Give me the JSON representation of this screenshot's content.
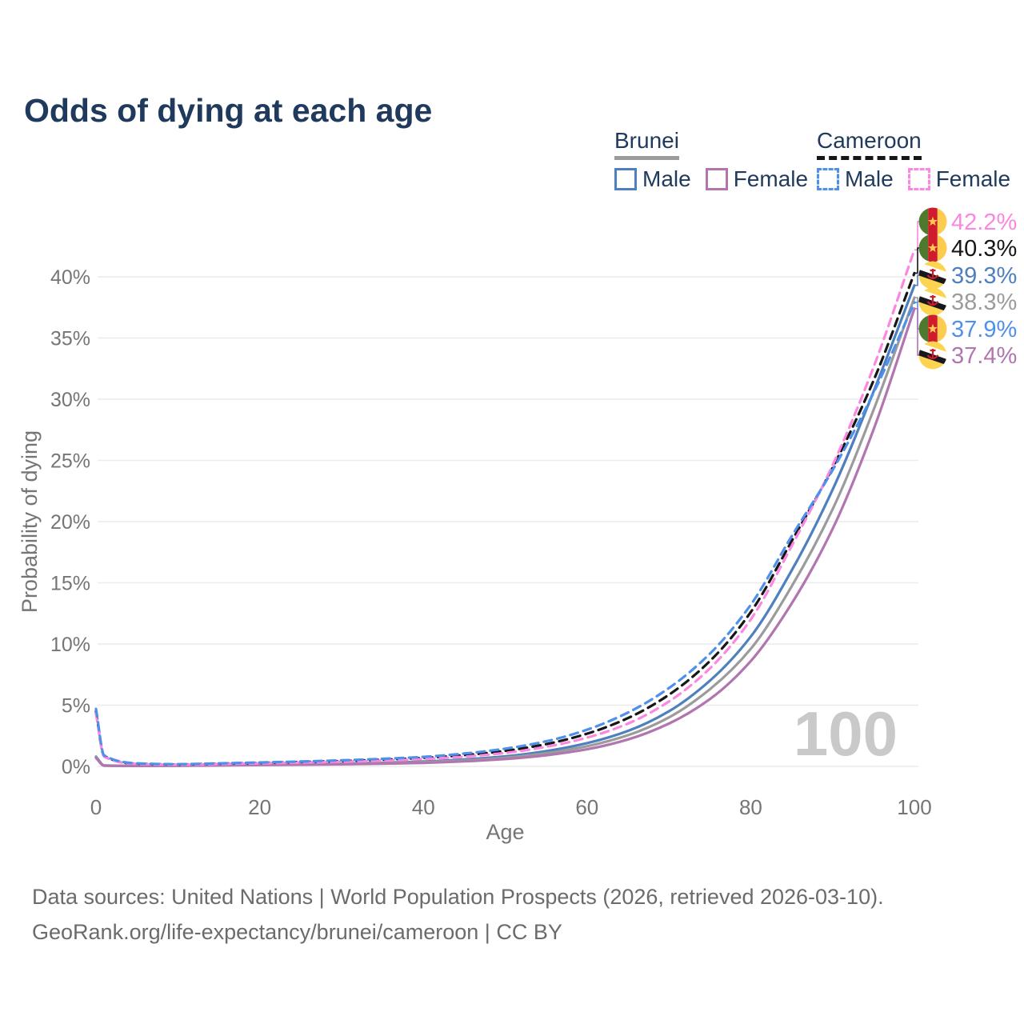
{
  "title": "Odds of dying at each age",
  "legend": {
    "groups": [
      {
        "label": "Brunei",
        "line_style": "solid",
        "line_color": "#9b9b9b",
        "items": [
          {
            "label": "Male",
            "color": "#4e7fbe",
            "dashed": false
          },
          {
            "label": "Female",
            "color": "#b175af",
            "dashed": false
          }
        ]
      },
      {
        "label": "Cameroon",
        "line_style": "dashed",
        "line_color": "#161616",
        "items": [
          {
            "label": "Male",
            "color": "#4f90ea",
            "dashed": true
          },
          {
            "label": "Female",
            "color": "#fb87e0",
            "dashed": true
          }
        ]
      }
    ]
  },
  "chart_data": {
    "type": "line",
    "title": "Odds of dying at each age",
    "xlabel": "Age",
    "ylabel": "Probability of dying",
    "xlim": [
      0,
      100
    ],
    "ylim": [
      0,
      43
    ],
    "x_ticks": [
      0,
      20,
      40,
      60,
      80,
      100
    ],
    "y_ticks_percent": [
      0,
      5,
      10,
      15,
      20,
      25,
      30,
      35,
      40
    ],
    "grid": "horizontal",
    "hover_age_watermark": "100",
    "ages": [
      0,
      1,
      5,
      10,
      15,
      20,
      25,
      30,
      35,
      40,
      45,
      50,
      55,
      60,
      65,
      70,
      75,
      80,
      85,
      90,
      95,
      100
    ],
    "series": [
      {
        "name": "Brunei Male",
        "country": "Brunei",
        "sex": "Male",
        "color": "#4e7fbe",
        "dashed": false,
        "flag": "brunei",
        "end_value_label": "39.3%",
        "values": [
          0.8,
          0.08,
          0.05,
          0.06,
          0.1,
          0.15,
          0.18,
          0.23,
          0.3,
          0.4,
          0.57,
          0.82,
          1.25,
          1.9,
          2.9,
          4.5,
          7.0,
          10.6,
          16.0,
          22.6,
          30.6,
          39.3
        ]
      },
      {
        "name": "Brunei Total",
        "country": "Brunei",
        "sex": "Both",
        "color": "#9b9b9b",
        "dashed": false,
        "flag": "brunei",
        "end_value_label": "38.3%",
        "values": [
          0.75,
          0.07,
          0.05,
          0.06,
          0.09,
          0.13,
          0.16,
          0.2,
          0.26,
          0.35,
          0.49,
          0.71,
          1.08,
          1.65,
          2.55,
          4.0,
          6.3,
          9.6,
          14.7,
          21.0,
          29.1,
          38.3
        ]
      },
      {
        "name": "Brunei Female",
        "country": "Brunei",
        "sex": "Female",
        "color": "#b175af",
        "dashed": false,
        "flag": "brunei",
        "end_value_label": "37.4%",
        "values": [
          0.7,
          0.06,
          0.04,
          0.05,
          0.08,
          0.11,
          0.14,
          0.17,
          0.22,
          0.29,
          0.41,
          0.6,
          0.91,
          1.4,
          2.2,
          3.5,
          5.5,
          8.6,
          13.3,
          19.4,
          27.5,
          37.4
        ]
      },
      {
        "name": "Cameroon Total",
        "country": "Cameroon",
        "sex": "Both",
        "color": "#161616",
        "dashed": true,
        "flag": "cameroon",
        "end_value_label": "40.3%",
        "values": [
          4.5,
          0.85,
          0.22,
          0.16,
          0.22,
          0.28,
          0.36,
          0.44,
          0.55,
          0.69,
          0.92,
          1.27,
          1.82,
          2.67,
          3.95,
          5.85,
          8.6,
          12.6,
          18.4,
          24.4,
          31.5,
          40.3
        ]
      },
      {
        "name": "Cameroon Female",
        "country": "Cameroon",
        "sex": "Female",
        "color": "#fb87e0",
        "dashed": true,
        "flag": "cameroon",
        "end_value_label": "42.2%",
        "values": [
          4.3,
          0.8,
          0.2,
          0.14,
          0.19,
          0.25,
          0.31,
          0.38,
          0.47,
          0.6,
          0.8,
          1.1,
          1.6,
          2.35,
          3.5,
          5.3,
          8.0,
          12.0,
          18.0,
          24.6,
          32.6,
          42.2
        ]
      },
      {
        "name": "Cameroon Male",
        "country": "Cameroon",
        "sex": "Male",
        "color": "#4f90ea",
        "dashed": true,
        "flag": "cameroon",
        "end_value_label": "37.9%",
        "values": [
          4.7,
          0.9,
          0.25,
          0.18,
          0.25,
          0.32,
          0.4,
          0.5,
          0.62,
          0.78,
          1.05,
          1.45,
          2.05,
          3.0,
          4.4,
          6.4,
          9.2,
          13.2,
          18.8,
          24.2,
          30.5,
          37.9
        ]
      }
    ],
    "end_labels": [
      {
        "label": "42.2%",
        "series": "Cameroon Female",
        "flag": "cameroon",
        "color": "#fb87e0"
      },
      {
        "label": "40.3%",
        "series": "Cameroon Total",
        "flag": "cameroon",
        "color": "#161616"
      },
      {
        "label": "39.3%",
        "series": "Brunei Male",
        "flag": "brunei",
        "color": "#4e7fbe"
      },
      {
        "label": "38.3%",
        "series": "Brunei Total",
        "flag": "brunei",
        "color": "#9b9b9b"
      },
      {
        "label": "37.9%",
        "series": "Cameroon Male",
        "flag": "cameroon",
        "color": "#4f90ea"
      },
      {
        "label": "37.4%",
        "series": "Brunei Female",
        "flag": "brunei",
        "color": "#b175af"
      }
    ]
  },
  "footer": {
    "line1": "Data sources: United Nations | World Population Prospects (2026, retrieved 2026-03-10).",
    "line2": "GeoRank.org/life-expectancy/brunei/cameroon | CC BY"
  }
}
